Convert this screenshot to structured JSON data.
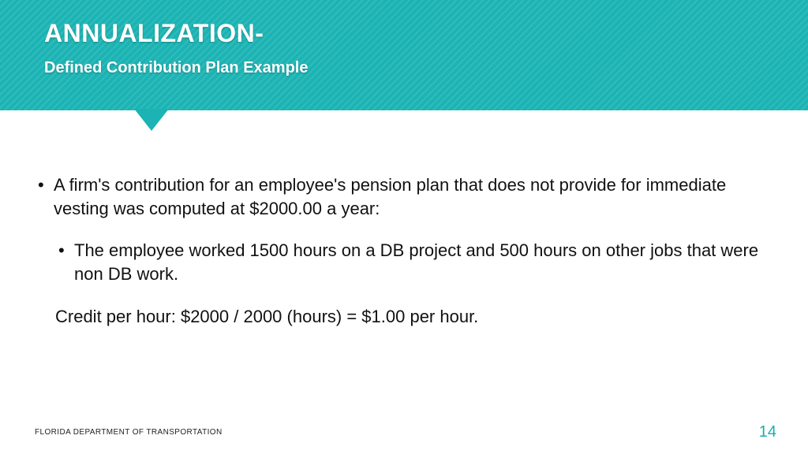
{
  "colors": {
    "header_bg": "#1bb3b3",
    "accent": "#16aeb0",
    "text": "#111111",
    "white": "#ffffff"
  },
  "header": {
    "title": "ANNUALIZATION-",
    "subtitle": "Defined Contribution Plan Example"
  },
  "bullets": {
    "main": "A firm's contribution for an employee's pension plan that does not provide for immediate vesting was computed at $2000.00 a year:",
    "sub1": "The employee worked 1500 hours on a DB project and 500 hours on other jobs that were non DB work.",
    "credit": "Credit per hour: $2000 / 2000 (hours) = $1.00 per hour."
  },
  "footer": {
    "org": "FLORIDA DEPARTMENT OF TRANSPORTATION",
    "page": "14"
  },
  "typography": {
    "title_fontsize": 32,
    "subtitle_fontsize": 20,
    "body_fontsize": 22,
    "footer_fontsize": 10,
    "page_fontsize": 20
  }
}
